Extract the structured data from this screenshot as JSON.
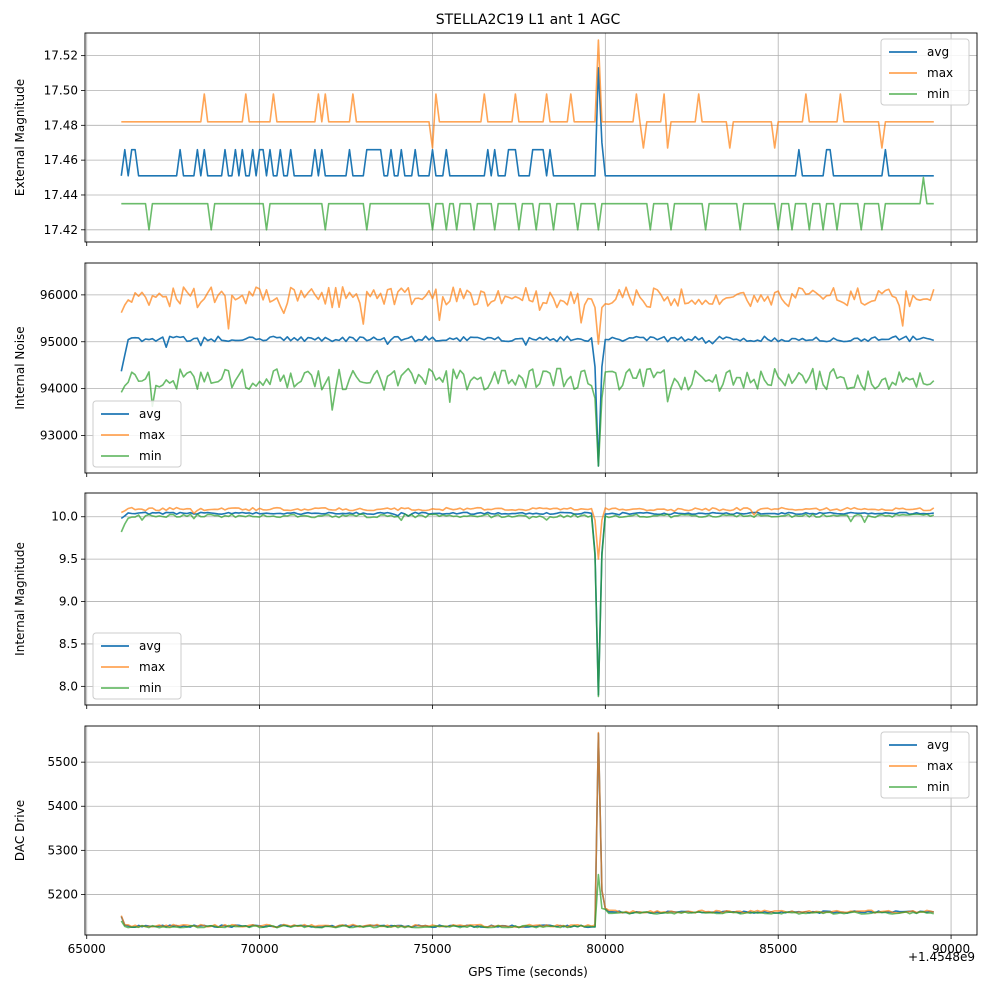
{
  "figure": {
    "title": "STELLA2C19 L1 ant 1 AGC",
    "xlabel": "GPS Time (seconds)",
    "x_offset_label": "+1.4548e9",
    "x_ticks": [
      65000,
      70000,
      75000,
      80000,
      85000,
      90000
    ],
    "x_tick_labels": [
      "65000",
      "70000",
      "75000",
      "80000",
      "85000",
      "90000"
    ],
    "xlim": [
      64950,
      90750
    ],
    "colors": {
      "avg": "#1f77b4",
      "max": "#ff7f0e",
      "min": "#2ca02c"
    }
  },
  "chart_data": [
    {
      "type": "line",
      "ylabel": "External Magnitude",
      "ylim": [
        17.413,
        17.533
      ],
      "y_ticks": [
        17.42,
        17.44,
        17.46,
        17.48,
        17.5,
        17.52
      ],
      "y_tick_labels": [
        "17.42",
        "17.44",
        "17.46",
        "17.48",
        "17.50",
        "17.52"
      ],
      "grid": true,
      "legend_position": "upper-right",
      "x_range": [
        66000,
        89500
      ],
      "x_step": 100,
      "series": [
        {
          "name": "avg",
          "baseline": 17.451,
          "features": [
            {
              "kind": "spike",
              "x": 66100,
              "y": 17.466
            },
            {
              "kind": "spike",
              "x": 66300,
              "y": 17.466
            },
            {
              "kind": "spike",
              "x": 66400,
              "y": 17.466
            },
            {
              "kind": "spike",
              "x": 67700,
              "y": 17.466
            },
            {
              "kind": "spike",
              "x": 68200,
              "y": 17.466
            },
            {
              "kind": "spike",
              "x": 68400,
              "y": 17.466
            },
            {
              "kind": "spike",
              "x": 69000,
              "y": 17.466
            },
            {
              "kind": "spike",
              "x": 69300,
              "y": 17.466
            },
            {
              "kind": "spike",
              "x": 69500,
              "y": 17.466
            },
            {
              "kind": "spike",
              "x": 69800,
              "y": 17.466
            },
            {
              "kind": "spike",
              "x": 70000,
              "y": 17.466
            },
            {
              "kind": "spike",
              "x": 70100,
              "y": 17.466
            },
            {
              "kind": "spike",
              "x": 70300,
              "y": 17.466
            },
            {
              "kind": "spike",
              "x": 70600,
              "y": 17.466
            },
            {
              "kind": "spike",
              "x": 70900,
              "y": 17.466
            },
            {
              "kind": "spike",
              "x": 71600,
              "y": 17.466
            },
            {
              "kind": "spike",
              "x": 71800,
              "y": 17.466
            },
            {
              "kind": "spike",
              "x": 72600,
              "y": 17.466
            },
            {
              "kind": "plateau",
              "x0": 73100,
              "x1": 73500,
              "y": 17.466
            },
            {
              "kind": "spike",
              "x": 73800,
              "y": 17.466
            },
            {
              "kind": "spike",
              "x": 74100,
              "y": 17.466
            },
            {
              "kind": "spike",
              "x": 74500,
              "y": 17.466
            },
            {
              "kind": "spike",
              "x": 75000,
              "y": 17.466
            },
            {
              "kind": "spike",
              "x": 75400,
              "y": 17.466
            },
            {
              "kind": "spike",
              "x": 76600,
              "y": 17.466
            },
            {
              "kind": "spike",
              "x": 76800,
              "y": 17.466
            },
            {
              "kind": "plateau",
              "x0": 77200,
              "x1": 77400,
              "y": 17.466
            },
            {
              "kind": "plateau",
              "x0": 77900,
              "x1": 78200,
              "y": 17.466
            },
            {
              "kind": "spike",
              "x": 78400,
              "y": 17.466
            },
            {
              "kind": "spike",
              "x": 79800,
              "y": 17.513
            },
            {
              "kind": "spike",
              "x": 79900,
              "y": 17.47
            },
            {
              "kind": "spike",
              "x": 85600,
              "y": 17.466
            },
            {
              "kind": "plateau",
              "x0": 86400,
              "x1": 86500,
              "y": 17.466
            },
            {
              "kind": "spike",
              "x": 88100,
              "y": 17.466
            }
          ]
        },
        {
          "name": "max",
          "baseline": 17.482,
          "features": [
            {
              "kind": "spike",
              "x": 68400,
              "y": 17.498
            },
            {
              "kind": "spike",
              "x": 69600,
              "y": 17.498
            },
            {
              "kind": "spike",
              "x": 70400,
              "y": 17.498
            },
            {
              "kind": "spike",
              "x": 71700,
              "y": 17.498
            },
            {
              "kind": "spike",
              "x": 71900,
              "y": 17.498
            },
            {
              "kind": "spike",
              "x": 72700,
              "y": 17.498
            },
            {
              "kind": "spike",
              "x": 75000,
              "y": 17.467
            },
            {
              "kind": "spike",
              "x": 75100,
              "y": 17.498
            },
            {
              "kind": "spike",
              "x": 76500,
              "y": 17.498
            },
            {
              "kind": "spike",
              "x": 77400,
              "y": 17.498
            },
            {
              "kind": "spike",
              "x": 78300,
              "y": 17.498
            },
            {
              "kind": "spike",
              "x": 79000,
              "y": 17.498
            },
            {
              "kind": "spike",
              "x": 79800,
              "y": 17.529
            },
            {
              "kind": "spike",
              "x": 80900,
              "y": 17.498
            },
            {
              "kind": "spike",
              "x": 81100,
              "y": 17.467
            },
            {
              "kind": "spike",
              "x": 81700,
              "y": 17.498
            },
            {
              "kind": "spike",
              "x": 81800,
              "y": 17.467
            },
            {
              "kind": "spike",
              "x": 82700,
              "y": 17.498
            },
            {
              "kind": "spike",
              "x": 83600,
              "y": 17.467
            },
            {
              "kind": "spike",
              "x": 84900,
              "y": 17.467
            },
            {
              "kind": "spike",
              "x": 85800,
              "y": 17.498
            },
            {
              "kind": "spike",
              "x": 86800,
              "y": 17.498
            },
            {
              "kind": "spike",
              "x": 88000,
              "y": 17.467
            }
          ]
        },
        {
          "name": "min",
          "baseline": 17.435,
          "features": [
            {
              "kind": "spike",
              "x": 66800,
              "y": 17.42
            },
            {
              "kind": "spike",
              "x": 68600,
              "y": 17.42
            },
            {
              "kind": "spike",
              "x": 70200,
              "y": 17.42
            },
            {
              "kind": "spike",
              "x": 71900,
              "y": 17.42
            },
            {
              "kind": "spike",
              "x": 73100,
              "y": 17.42
            },
            {
              "kind": "spike",
              "x": 75000,
              "y": 17.42
            },
            {
              "kind": "spike",
              "x": 75400,
              "y": 17.42
            },
            {
              "kind": "spike",
              "x": 75700,
              "y": 17.42
            },
            {
              "kind": "spike",
              "x": 76200,
              "y": 17.42
            },
            {
              "kind": "spike",
              "x": 76800,
              "y": 17.42
            },
            {
              "kind": "spike",
              "x": 77500,
              "y": 17.42
            },
            {
              "kind": "spike",
              "x": 78000,
              "y": 17.42
            },
            {
              "kind": "spike",
              "x": 78500,
              "y": 17.42
            },
            {
              "kind": "spike",
              "x": 79200,
              "y": 17.42
            },
            {
              "kind": "spike",
              "x": 79800,
              "y": 17.42
            },
            {
              "kind": "spike",
              "x": 81300,
              "y": 17.42
            },
            {
              "kind": "spike",
              "x": 81900,
              "y": 17.42
            },
            {
              "kind": "spike",
              "x": 82900,
              "y": 17.42
            },
            {
              "kind": "spike",
              "x": 83900,
              "y": 17.42
            },
            {
              "kind": "spike",
              "x": 85000,
              "y": 17.42
            },
            {
              "kind": "spike",
              "x": 85400,
              "y": 17.42
            },
            {
              "kind": "spike",
              "x": 85900,
              "y": 17.42
            },
            {
              "kind": "spike",
              "x": 86300,
              "y": 17.42
            },
            {
              "kind": "spike",
              "x": 86700,
              "y": 17.42
            },
            {
              "kind": "spike",
              "x": 87400,
              "y": 17.42
            },
            {
              "kind": "spike",
              "x": 88000,
              "y": 17.42
            },
            {
              "kind": "spike",
              "x": 89200,
              "y": 17.45
            }
          ]
        }
      ]
    },
    {
      "type": "line",
      "ylabel": "Internal Noise",
      "ylim": [
        92200,
        96680
      ],
      "y_ticks": [
        93000,
        94000,
        95000,
        96000
      ],
      "y_tick_labels": [
        "93000",
        "94000",
        "95000",
        "96000"
      ],
      "grid": true,
      "legend_position": "lower-left",
      "x_range": [
        66000,
        89500
      ],
      "x_step": 100,
      "dip_x": 79800,
      "series": [
        {
          "name": "avg",
          "level": 95060,
          "noise": 60,
          "start_value": 94370,
          "dip_value": 92350
        },
        {
          "name": "max",
          "level": 95950,
          "noise": 220,
          "start_value": 95620,
          "dip_value": 94950
        },
        {
          "name": "min",
          "level": 94200,
          "noise": 230,
          "start_value": 93920,
          "dip_value": 92350
        }
      ]
    },
    {
      "type": "line",
      "ylabel": "Internal Magnitude",
      "ylim": [
        7.78,
        10.28
      ],
      "y_ticks": [
        8.0,
        8.5,
        9.0,
        9.5,
        10.0
      ],
      "y_tick_labels": [
        "8.0",
        "8.5",
        "9.0",
        "9.5",
        "10.0"
      ],
      "grid": true,
      "legend_position": "lower-left",
      "x_range": [
        66000,
        89500
      ],
      "x_step": 100,
      "dip_x": 79800,
      "series": [
        {
          "name": "avg",
          "level": 10.04,
          "noise": 0.012,
          "start_value": 9.98,
          "dip_value": 7.9
        },
        {
          "name": "max",
          "level": 10.09,
          "noise": 0.018,
          "start_value": 10.05,
          "dip_value": 9.5
        },
        {
          "name": "min",
          "level": 10.01,
          "noise": 0.02,
          "start_value": 9.82,
          "dip_value": 7.88
        }
      ]
    },
    {
      "type": "line",
      "ylabel": "DAC Drive",
      "ylim": [
        5108,
        5582
      ],
      "y_ticks": [
        5200,
        5300,
        5400,
        5500
      ],
      "y_tick_labels": [
        "5200",
        "5300",
        "5400",
        "5500"
      ],
      "grid": true,
      "legend_position": "upper-right",
      "x_range": [
        66000,
        89500
      ],
      "x_step": 100,
      "spike_x": 79800,
      "series": [
        {
          "name": "avg",
          "before": 5128,
          "after": 5160,
          "noise": 2.5,
          "start_value": 5150,
          "peak": 5565
        },
        {
          "name": "max",
          "before": 5129,
          "after": 5161,
          "noise": 3,
          "start_value": 5152,
          "peak": 5567
        },
        {
          "name": "min",
          "before": 5127,
          "after": 5158,
          "noise": 2.5,
          "start_value": 5140,
          "peak": 5245
        }
      ]
    }
  ],
  "legend": {
    "avg": "avg",
    "max": "max",
    "min": "min"
  }
}
